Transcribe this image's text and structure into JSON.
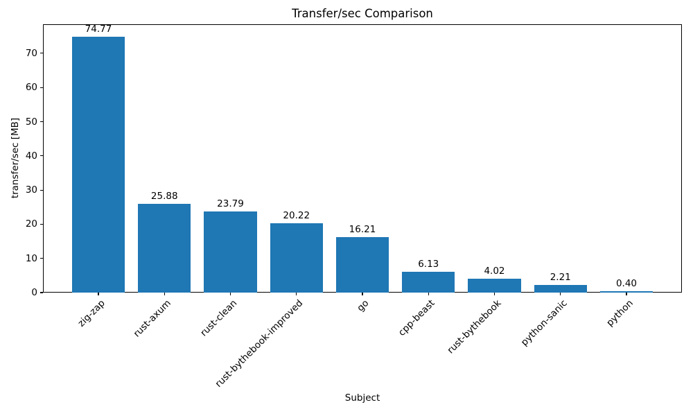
{
  "chart_data": {
    "type": "bar",
    "title": "Transfer/sec Comparison",
    "xlabel": "Subject",
    "ylabel": "transfer/sec [MB]",
    "categories": [
      "zig-zap",
      "rust-axum",
      "rust-clean",
      "rust-bythebook-improved",
      "go",
      "cpp-beast",
      "rust-bythebook",
      "python-sanic",
      "python"
    ],
    "values": [
      74.77,
      25.88,
      23.79,
      20.22,
      16.21,
      6.13,
      4.02,
      2.21,
      0.4
    ],
    "value_labels": [
      "74.77",
      "25.88",
      "23.79",
      "20.22",
      "16.21",
      "6.13",
      "4.02",
      "2.21",
      "0.40"
    ],
    "yticks": [
      0,
      10,
      20,
      30,
      40,
      50,
      60,
      70
    ],
    "ylim": [
      0,
      78.5
    ],
    "xtick_rotation": 45,
    "grid": false,
    "legend": null,
    "bar_color": "#1f77b4",
    "text_color": "#000000",
    "background_color": "#ffffff"
  }
}
